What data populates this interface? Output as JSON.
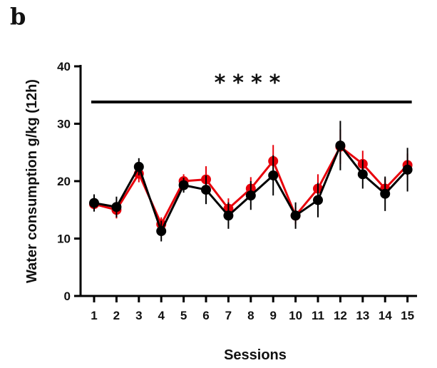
{
  "panel_label": "b",
  "chart_data": {
    "type": "line",
    "xlabel": "Sessions",
    "ylabel": "Water consumption g/kg (12h)",
    "ylim": [
      0,
      40
    ],
    "yticks": [
      0,
      10,
      20,
      30,
      40
    ],
    "categories": [
      "1",
      "2",
      "3",
      "4",
      "5",
      "6",
      "7",
      "8",
      "9",
      "10",
      "11",
      "12",
      "13",
      "14",
      "15"
    ],
    "grid": false,
    "significance": {
      "label": "****",
      "spans": [
        "1",
        "15"
      ]
    },
    "series": [
      {
        "color": "#e8000b",
        "values": [
          16.0,
          15.0,
          21.3,
          12.5,
          20.0,
          20.3,
          15.2,
          18.7,
          23.5,
          14.0,
          18.7,
          26.0,
          23.0,
          18.7,
          22.8
        ],
        "errors": [
          1.2,
          1.5,
          1.5,
          1.2,
          1.2,
          2.3,
          1.8,
          2.0,
          2.8,
          1.5,
          2.5,
          3.0,
          2.3,
          1.8,
          2.0
        ]
      },
      {
        "color": "#000000",
        "values": [
          16.2,
          15.5,
          22.5,
          11.3,
          19.3,
          18.5,
          14.0,
          17.5,
          21.0,
          14.0,
          16.7,
          26.2,
          21.2,
          17.8,
          22.0
        ],
        "errors": [
          1.5,
          1.8,
          1.5,
          1.8,
          1.3,
          2.5,
          2.3,
          2.5,
          3.5,
          2.3,
          3.0,
          4.3,
          2.5,
          3.0,
          3.8
        ]
      }
    ]
  }
}
